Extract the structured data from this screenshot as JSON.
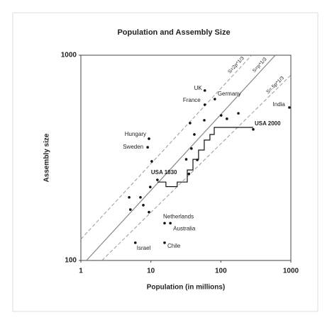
{
  "chart_data": {
    "type": "scatter",
    "title": "Population and Assembly Size",
    "x_label": "Population (in millions)",
    "y_label": "Assembly size",
    "log_x": true,
    "log_y": true,
    "xlim": [
      1,
      1000
    ],
    "ylim": [
      100,
      1000
    ],
    "xticks": [
      1,
      10,
      100,
      1000
    ],
    "yticks": [
      100,
      1000
    ],
    "points": {
      "color": "#111111",
      "labels": [
        "UK",
        "Germany",
        "France",
        "India",
        "Hungary",
        "Sweden",
        "USA 1830",
        "USA 2000",
        "Netherlands",
        "Australia",
        "Israel",
        "Chile",
        null,
        null,
        null,
        null,
        null,
        null,
        null,
        null,
        null,
        null,
        null,
        null,
        null,
        null,
        null,
        null,
        null
      ],
      "x": [
        59,
        82,
        59,
        952,
        9.4,
        9,
        12.4,
        290,
        15.7,
        19,
        6,
        15.7,
        36.3,
        41.8,
        58,
        101,
        122,
        178,
        10.3,
        9.8,
        7.1,
        4.9,
        5.1,
        7.8,
        9.4,
        32,
        38,
        35,
        46
      ],
      "y": [
        673,
        611,
        574,
        556,
        392,
        356,
        247,
        435,
        152,
        152,
        122,
        122,
        467,
        411,
        482,
        509,
        490,
        521,
        304,
        228,
        203,
        203,
        177,
        186,
        172,
        311,
        351,
        264,
        309
      ]
    },
    "lines": [
      {
        "name": "S=2p^1/3",
        "color": "#999999",
        "dash": true,
        "x": [
          1,
          276
        ],
        "y": [
          127,
          1000
        ]
      },
      {
        "name": "S=p^1/3",
        "color": "#888888",
        "dash": false,
        "x": [
          1.2,
          600
        ],
        "y": [
          100,
          1000
        ]
      },
      {
        "name": "S=.5p^1/3",
        "color": "#999999",
        "dash": true,
        "x": [
          2,
          1000
        ],
        "y": [
          100,
          800
        ]
      },
      {
        "color": "#111111",
        "dash": false,
        "x": [
          12.4,
          16.4,
          16.4,
          23.8,
          23.8,
          33.1,
          33.1,
          39.9,
          39.9,
          48,
          48,
          57.9,
          57.9,
          69.7,
          69.7,
          80.4,
          80.4,
          290
        ],
        "y": [
          241,
          241,
          229,
          229,
          241,
          241,
          276,
          276,
          311,
          311,
          345,
          345,
          386,
          386,
          411,
          411,
          445,
          445
        ]
      }
    ]
  }
}
